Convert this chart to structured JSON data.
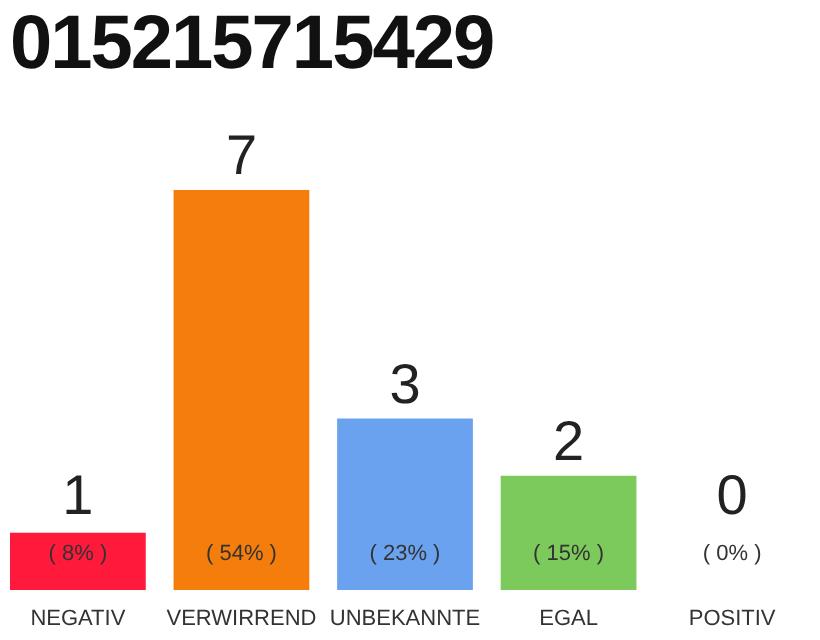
{
  "chart_data": {
    "type": "bar",
    "title": "015215715429",
    "categories": [
      "NEGATIV",
      "VERWIRREND",
      "UNBEKANNTE",
      "EGAL",
      "POSITIV"
    ],
    "values": [
      1,
      7,
      3,
      2,
      0
    ],
    "colors": [
      "#ff1a3c",
      "#f47d0c",
      "#6aa2ef",
      "#7cc95c",
      "#bdbdbd"
    ],
    "value_labels": [
      "1",
      "7",
      "3",
      "2",
      "0"
    ],
    "annotations": [
      "( 8% )",
      "( 54% )",
      "( 23% )",
      "( 15% )",
      "( 0% )"
    ]
  }
}
